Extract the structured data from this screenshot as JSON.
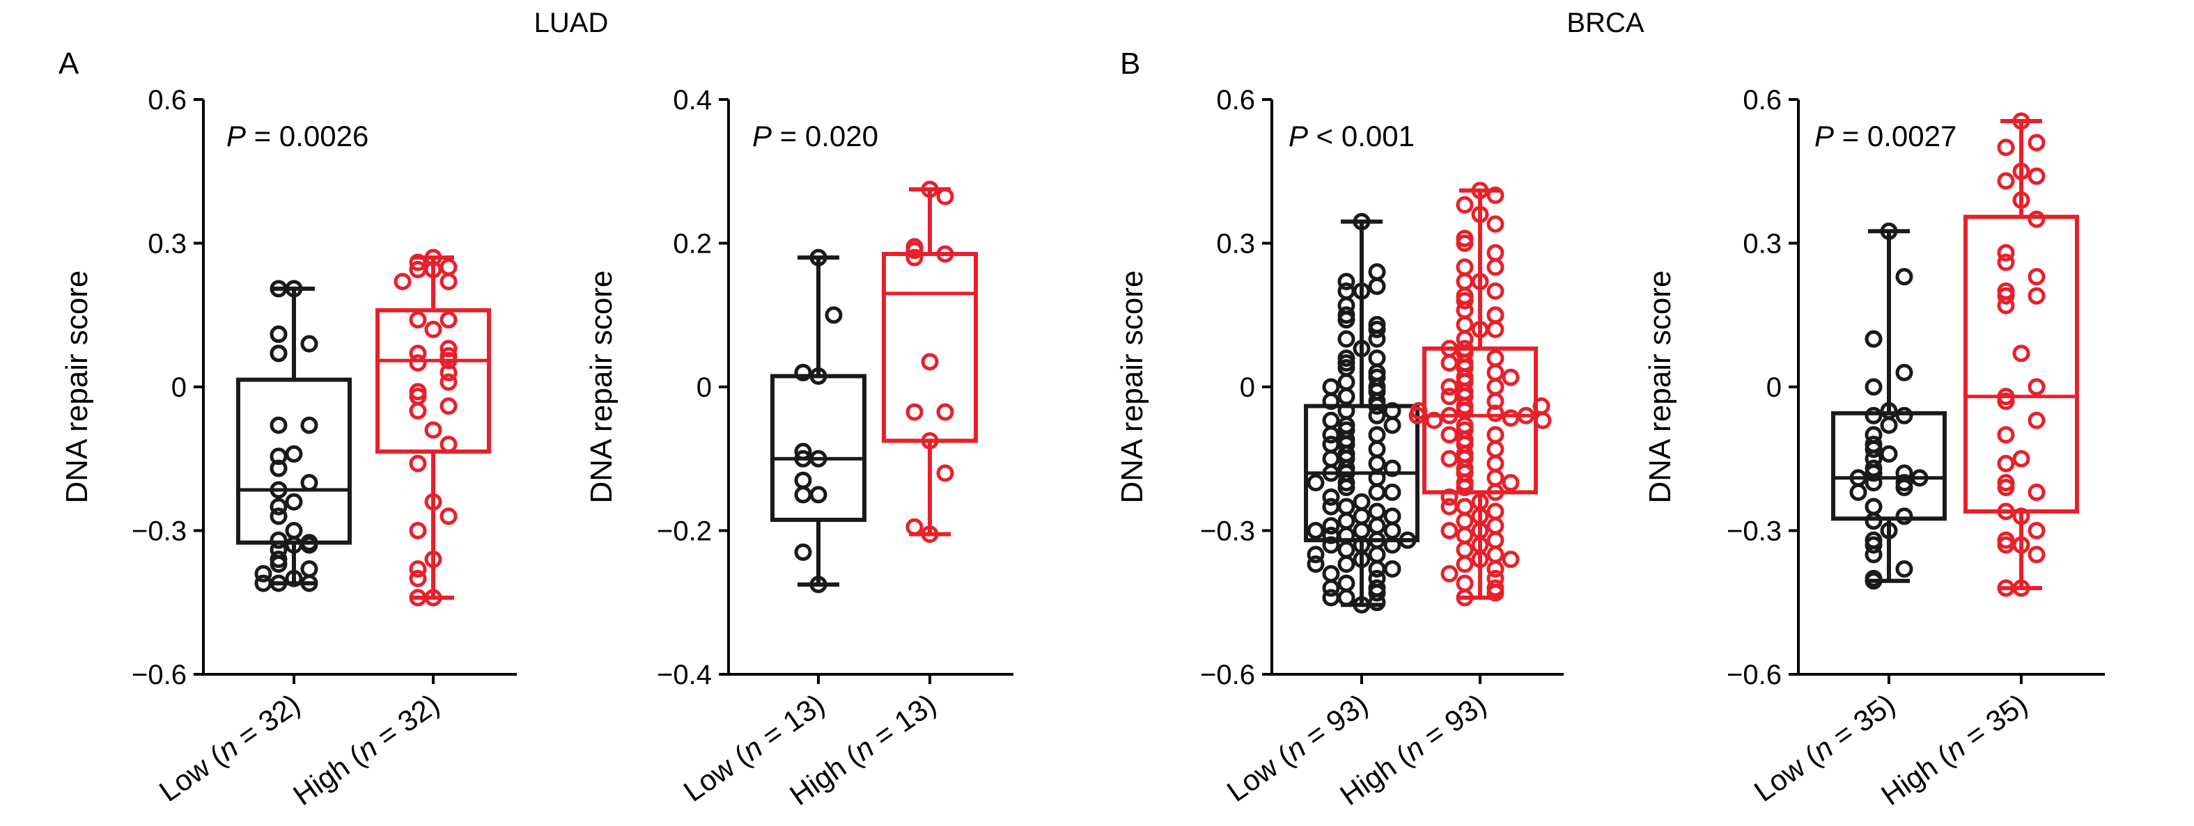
{
  "figure": {
    "group_titles": [
      "LUAD",
      "BRCA"
    ],
    "panel_letters": [
      "A",
      "B"
    ]
  },
  "colors": {
    "low": "#1a1a1a",
    "high": "#e8202a",
    "axis": "#000000"
  },
  "chart_data": [
    {
      "type": "box",
      "group": "LUAD",
      "panel": "A",
      "p_label": "P",
      "p_value": "= 0.0026",
      "ylabel": "DNA repair score",
      "ylim": [
        -0.6,
        0.6
      ],
      "yticks": [
        "0.6",
        "0.3",
        "0",
        "−0.3",
        "−0.6"
      ],
      "ytick_values": [
        0.6,
        0.3,
        0,
        -0.3,
        -0.6
      ],
      "categories": [
        {
          "prefix": "Low (",
          "n_symbol": "n",
          "suffix": " = 32)",
          "color": "#1a1a1a",
          "box": {
            "min": -0.41,
            "q1": -0.325,
            "median": -0.215,
            "q3": 0.015,
            "max": 0.205
          },
          "points": [
            0.205,
            0.205,
            0.11,
            0.11,
            0.09,
            0.07,
            0.07,
            -0.08,
            -0.08,
            -0.14,
            -0.145,
            -0.17,
            -0.17,
            -0.2,
            -0.215,
            -0.24,
            -0.25,
            -0.27,
            -0.3,
            -0.32,
            -0.325,
            -0.33,
            -0.34,
            -0.36,
            -0.37,
            -0.38,
            -0.39,
            -0.4,
            -0.41,
            -0.41,
            -0.41,
            -0.33
          ]
        },
        {
          "prefix": "High (",
          "n_symbol": "n",
          "suffix": " = 32)",
          "color": "#e8202a",
          "box": {
            "min": -0.44,
            "q1": -0.135,
            "median": 0.055,
            "q3": 0.16,
            "max": 0.27
          },
          "points": [
            0.27,
            0.26,
            0.25,
            0.245,
            0.245,
            0.22,
            0.22,
            0.14,
            0.14,
            0.12,
            0.08,
            0.07,
            0.065,
            0.055,
            0.05,
            0.03,
            0.01,
            -0.01,
            -0.02,
            -0.04,
            -0.05,
            -0.09,
            -0.12,
            -0.16,
            -0.24,
            -0.27,
            -0.3,
            -0.36,
            -0.38,
            -0.4,
            -0.44,
            -0.44
          ]
        }
      ]
    },
    {
      "type": "box",
      "group": "LUAD",
      "panel": "",
      "p_label": "P",
      "p_value": "= 0.020",
      "ylabel": "DNA repair score",
      "ylim": [
        -0.4,
        0.4
      ],
      "yticks": [
        "0.4",
        "0.2",
        "0",
        "−0.2",
        "−0.4"
      ],
      "ytick_values": [
        0.4,
        0.2,
        0,
        -0.2,
        -0.4
      ],
      "categories": [
        {
          "prefix": "Low (",
          "n_symbol": "n",
          "suffix": " = 13)",
          "color": "#1a1a1a",
          "box": {
            "min": -0.275,
            "q1": -0.185,
            "median": -0.1,
            "q3": 0.015,
            "max": 0.18
          },
          "points": [
            0.18,
            0.1,
            0.02,
            0.015,
            0.02,
            -0.09,
            -0.1,
            -0.1,
            -0.13,
            -0.15,
            -0.15,
            -0.23,
            -0.275
          ]
        },
        {
          "prefix": "High (",
          "n_symbol": "n",
          "suffix": " = 13)",
          "color": "#e8202a",
          "box": {
            "min": -0.205,
            "q1": -0.075,
            "median": 0.13,
            "q3": 0.185,
            "max": 0.275
          },
          "points": [
            0.275,
            0.265,
            0.195,
            0.19,
            0.185,
            0.18,
            0.035,
            -0.035,
            -0.035,
            -0.075,
            -0.12,
            -0.195,
            -0.205
          ]
        }
      ]
    },
    {
      "type": "box",
      "group": "BRCA",
      "panel": "B",
      "p_label": "P",
      "p_value": "< 0.001",
      "ylabel": "DNA repair score",
      "ylim": [
        -0.6,
        0.6
      ],
      "yticks": [
        "0.6",
        "0.3",
        "0",
        "−0.3",
        "−0.6"
      ],
      "ytick_values": [
        0.6,
        0.3,
        0,
        -0.3,
        -0.6
      ],
      "categories": [
        {
          "prefix": "Low (",
          "n_symbol": "n",
          "suffix": " = 93)",
          "color": "#1a1a1a",
          "box": {
            "min": -0.455,
            "q1": -0.32,
            "median": -0.18,
            "q3": -0.04,
            "max": 0.345
          },
          "points": [
            0.345,
            0.24,
            0.22,
            0.2,
            0.2,
            0.15,
            0.14,
            0.12,
            0.1,
            0.08,
            0.06,
            0.05,
            0.04,
            0.02,
            0.01,
            0.0,
            -0.01,
            -0.02,
            -0.03,
            -0.04,
            -0.05,
            -0.06,
            -0.07,
            -0.08,
            -0.09,
            -0.1,
            -0.11,
            -0.12,
            -0.13,
            -0.14,
            -0.15,
            -0.16,
            -0.17,
            -0.18,
            -0.19,
            -0.2,
            -0.21,
            -0.22,
            -0.23,
            -0.24,
            -0.25,
            -0.26,
            -0.27,
            -0.28,
            -0.29,
            -0.3,
            -0.31,
            -0.32,
            -0.33,
            -0.34,
            -0.35,
            -0.36,
            -0.37,
            -0.38,
            -0.39,
            -0.4,
            -0.41,
            -0.42,
            -0.43,
            -0.44,
            -0.455,
            -0.45,
            -0.42,
            -0.38,
            -0.33,
            -0.31,
            -0.3,
            -0.3,
            -0.29,
            -0.27,
            -0.25,
            -0.22,
            -0.2,
            -0.18,
            -0.17,
            -0.15,
            -0.12,
            -0.1,
            -0.08,
            -0.05,
            -0.03,
            0.0,
            0.03,
            0.06,
            0.1,
            0.13,
            0.17,
            0.21,
            -0.32,
            -0.33,
            -0.35,
            -0.37,
            -0.44
          ]
        },
        {
          "prefix": "High (",
          "n_symbol": "n",
          "suffix": " = 93)",
          "color": "#e8202a",
          "box": {
            "min": -0.44,
            "q1": -0.22,
            "median": -0.06,
            "q3": 0.08,
            "max": 0.41
          },
          "points": [
            0.41,
            0.4,
            0.38,
            0.36,
            0.34,
            0.31,
            0.3,
            0.28,
            0.25,
            0.22,
            0.2,
            0.18,
            0.16,
            0.15,
            0.13,
            0.12,
            0.1,
            0.08,
            0.07,
            0.06,
            0.05,
            0.04,
            0.03,
            0.02,
            0.01,
            0.0,
            -0.01,
            -0.02,
            -0.03,
            -0.04,
            -0.05,
            -0.055,
            -0.06,
            -0.065,
            -0.07,
            -0.08,
            -0.09,
            -0.1,
            -0.11,
            -0.12,
            -0.13,
            -0.14,
            -0.15,
            -0.16,
            -0.17,
            -0.18,
            -0.19,
            -0.2,
            -0.21,
            -0.22,
            -0.23,
            -0.24,
            -0.25,
            -0.26,
            -0.27,
            -0.28,
            -0.29,
            -0.3,
            -0.31,
            -0.32,
            -0.33,
            -0.34,
            -0.35,
            -0.36,
            -0.37,
            -0.38,
            -0.39,
            -0.4,
            -0.41,
            -0.42,
            -0.43,
            -0.44,
            -0.36,
            -0.3,
            -0.25,
            -0.2,
            -0.15,
            -0.1,
            -0.06,
            -0.05,
            -0.04,
            -0.02,
            0.0,
            0.02,
            0.05,
            0.08,
            0.12,
            0.15,
            0.19,
            0.22,
            0.25,
            -0.06,
            -0.07
          ]
        }
      ]
    },
    {
      "type": "box",
      "group": "BRCA",
      "panel": "",
      "p_label": "P",
      "p_value": "= 0.0027",
      "ylabel": "DNA repair score",
      "ylim": [
        -0.6,
        0.6
      ],
      "yticks": [
        "0.6",
        "0.3",
        "0",
        "−0.3",
        "−0.6"
      ],
      "ytick_values": [
        0.6,
        0.3,
        0,
        -0.3,
        -0.6
      ],
      "categories": [
        {
          "prefix": "Low (",
          "n_symbol": "n",
          "suffix": " = 35)",
          "color": "#1a1a1a",
          "box": {
            "min": -0.405,
            "q1": -0.275,
            "median": -0.19,
            "q3": -0.055,
            "max": 0.325
          },
          "points": [
            0.325,
            0.23,
            0.1,
            0.1,
            0.03,
            0.0,
            -0.05,
            -0.06,
            -0.06,
            -0.08,
            -0.1,
            -0.12,
            -0.14,
            -0.15,
            -0.17,
            -0.18,
            -0.18,
            -0.19,
            -0.19,
            -0.2,
            -0.2,
            -0.21,
            -0.22,
            -0.25,
            -0.25,
            -0.27,
            -0.28,
            -0.3,
            -0.32,
            -0.33,
            -0.35,
            -0.38,
            -0.4,
            -0.405,
            -0.13
          ]
        },
        {
          "prefix": "High (",
          "n_symbol": "n",
          "suffix": " = 35)",
          "color": "#e8202a",
          "box": {
            "min": -0.42,
            "q1": -0.26,
            "median": -0.02,
            "q3": 0.355,
            "max": 0.555
          },
          "points": [
            0.555,
            0.51,
            0.5,
            0.45,
            0.44,
            0.43,
            0.39,
            0.35,
            0.28,
            0.26,
            0.23,
            0.2,
            0.19,
            0.19,
            0.17,
            0.07,
            0.0,
            -0.02,
            -0.03,
            -0.07,
            -0.1,
            -0.15,
            -0.16,
            -0.2,
            -0.21,
            -0.22,
            -0.26,
            -0.27,
            -0.3,
            -0.32,
            -0.33,
            -0.33,
            -0.35,
            -0.42,
            -0.42
          ]
        }
      ]
    }
  ]
}
